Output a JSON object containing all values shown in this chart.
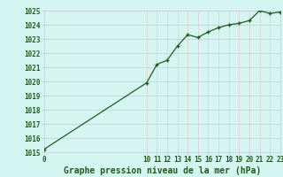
{
  "x": [
    0,
    10,
    11,
    12,
    13,
    14,
    15,
    16,
    17,
    18,
    19,
    20,
    21,
    22,
    23
  ],
  "y": [
    1015.2,
    1019.9,
    1021.2,
    1021.5,
    1022.5,
    1023.3,
    1023.1,
    1023.5,
    1023.8,
    1024.0,
    1024.1,
    1024.3,
    1025.0,
    1024.8,
    1024.9
  ],
  "ylim": [
    1015,
    1025
  ],
  "xlim": [
    0,
    23
  ],
  "yticks": [
    1015,
    1016,
    1017,
    1018,
    1019,
    1020,
    1021,
    1022,
    1023,
    1024,
    1025
  ],
  "xticks": [
    0,
    10,
    11,
    12,
    13,
    14,
    15,
    16,
    17,
    18,
    19,
    20,
    21,
    22,
    23
  ],
  "line_color": "#1e5c1e",
  "marker_color": "#1e5c1e",
  "bg_color": "#d5f5f0",
  "grid_color_h": "#c8c8d8",
  "grid_color_v": "#e8c8c8",
  "xlabel": "Graphe pression niveau de la mer (hPa)",
  "xlabel_fontsize": 7,
  "tick_fontsize": 5.5
}
